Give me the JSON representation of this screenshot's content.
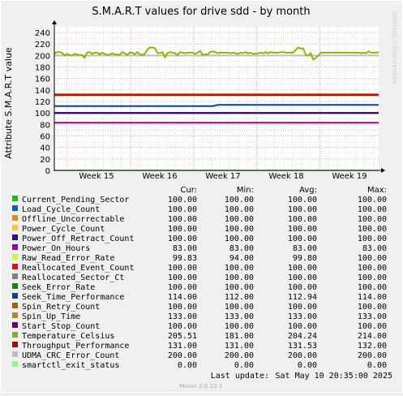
{
  "chart_data": {
    "type": "line",
    "title": "S.M.A.R.T values for drive sdd - by month",
    "ylabel": "Attribute S.M.A.R.T value",
    "xlabel": "",
    "side_label": "RRDTOOL / TOBI OETIKER",
    "footer": "Munin 2.0.33-1",
    "ylim": [
      0,
      250
    ],
    "yticks": [
      0,
      20,
      40,
      60,
      80,
      100,
      120,
      140,
      160,
      180,
      200,
      220,
      240
    ],
    "xticks": [
      "Week 15",
      "Week 16",
      "Week 17",
      "Week 18",
      "Week 19"
    ],
    "grid": true,
    "legend_headers": {
      "cur": "Cur:",
      "min": "Min:",
      "avg": "Avg:",
      "max": "Max:"
    },
    "last_update_label": "Last update:",
    "last_update_value": "Sat May 10 20:35:00 2025",
    "series": [
      {
        "name": "Current_Pending_Sector",
        "color": "#00cc00",
        "cur": "100.00",
        "min": "100.00",
        "avg": "100.00",
        "max": "100.00",
        "value": 100
      },
      {
        "name": "Load_Cycle_Count",
        "color": "#0066b3",
        "cur": "100.00",
        "min": "100.00",
        "avg": "100.00",
        "max": "100.00",
        "value": 100
      },
      {
        "name": "Offline_Uncorrectable",
        "color": "#ff8000",
        "cur": "100.00",
        "min": "100.00",
        "avg": "100.00",
        "max": "100.00",
        "value": 100
      },
      {
        "name": "Power_Cycle_Count",
        "color": "#ffcc00",
        "cur": "100.00",
        "min": "100.00",
        "avg": "100.00",
        "max": "100.00",
        "value": 100
      },
      {
        "name": "Power_Off_Retract_Count",
        "color": "#330099",
        "cur": "100.00",
        "min": "100.00",
        "avg": "100.00",
        "max": "100.00",
        "value": 100
      },
      {
        "name": "Power_On_Hours",
        "color": "#990099",
        "cur": "83.00",
        "min": "83.00",
        "avg": "83.00",
        "max": "83.00",
        "value": 83
      },
      {
        "name": "Raw_Read_Error_Rate",
        "color": "#ccff00",
        "cur": "99.83",
        "min": "94.00",
        "avg": "99.80",
        "max": "100.00",
        "value": 99.8
      },
      {
        "name": "Reallocated_Event_Count",
        "color": "#ff0000",
        "cur": "100.00",
        "min": "100.00",
        "avg": "100.00",
        "max": "100.00",
        "value": 100
      },
      {
        "name": "Reallocated_Sector_Ct",
        "color": "#808080",
        "cur": "100.00",
        "min": "100.00",
        "avg": "100.00",
        "max": "100.00",
        "value": 100
      },
      {
        "name": "Seek_Error_Rate",
        "color": "#008f00",
        "cur": "100.00",
        "min": "100.00",
        "avg": "100.00",
        "max": "100.00",
        "value": 100
      },
      {
        "name": "Seek_Time_Performance",
        "color": "#00487d",
        "cur": "114.00",
        "min": "112.00",
        "avg": "112.94",
        "max": "114.00",
        "value": 112
      },
      {
        "name": "Spin_Retry_Count",
        "color": "#b35a00",
        "cur": "100.00",
        "min": "100.00",
        "avg": "100.00",
        "max": "100.00",
        "value": 100
      },
      {
        "name": "Spin_Up_Time",
        "color": "#b38f00",
        "cur": "133.00",
        "min": "133.00",
        "avg": "133.00",
        "max": "133.00",
        "value": 133
      },
      {
        "name": "Start_Stop_Count",
        "color": "#6b006b",
        "cur": "100.00",
        "min": "100.00",
        "avg": "100.00",
        "max": "100.00",
        "value": 100
      },
      {
        "name": "Temperature_Celsius",
        "color": "#8fb300",
        "cur": "205.51",
        "min": "181.00",
        "avg": "204.24",
        "max": "214.00",
        "value": 204
      },
      {
        "name": "Throughput_Performance",
        "color": "#b30000",
        "cur": "131.00",
        "min": "131.00",
        "avg": "131.53",
        "max": "132.00",
        "value": 131
      },
      {
        "name": "UDMA_CRC_Error_Count",
        "color": "#bebebe",
        "cur": "200.00",
        "min": "200.00",
        "avg": "200.00",
        "max": "200.00",
        "value": 200
      },
      {
        "name": "smartctl_exit_status",
        "color": "#80ff80",
        "cur": "0.00",
        "min": "0.00",
        "avg": "0.00",
        "max": "0.00",
        "value": 0
      }
    ],
    "temperature_values": [
      203,
      206,
      206,
      205,
      200,
      203,
      201,
      200,
      203,
      202,
      201,
      201,
      196,
      205,
      206,
      203,
      205,
      205,
      202,
      205,
      203,
      201,
      202,
      204,
      202,
      202,
      201,
      206,
      204,
      201,
      205,
      205,
      202,
      206,
      202,
      201,
      203,
      210,
      214,
      214,
      213,
      205,
      204,
      206,
      197,
      204,
      206,
      205,
      204,
      201,
      206,
      205,
      204,
      205,
      205,
      205,
      203,
      205,
      208,
      201,
      202,
      202,
      206,
      207,
      206,
      204,
      205,
      205,
      205,
      205,
      204,
      205,
      204,
      203,
      205,
      204,
      206,
      204,
      205,
      203,
      203,
      204,
      205,
      204,
      206,
      204,
      206,
      205,
      205,
      205,
      206,
      206,
      205,
      205,
      205,
      205,
      210,
      214,
      212,
      212,
      201,
      200,
      204,
      193,
      196,
      200,
      205,
      205,
      205,
      205,
      205,
      205,
      205,
      205,
      205,
      205,
      205,
      205,
      205,
      205,
      205,
      205,
      204,
      205,
      204,
      207,
      205,
      205,
      205,
      206
    ],
    "seek_time_values": [
      112,
      112,
      112,
      112,
      112,
      112,
      112,
      112,
      112,
      112,
      112,
      112,
      112,
      112,
      112,
      112,
      112,
      112,
      112,
      112,
      112,
      112,
      112,
      112,
      112,
      112,
      112,
      112,
      112,
      112,
      112,
      112,
      112,
      112,
      112,
      112,
      112,
      112,
      112,
      112,
      112,
      112,
      112,
      112,
      112,
      112,
      112,
      112,
      112,
      112,
      112,
      112,
      112,
      112,
      112,
      112,
      112,
      112,
      112,
      112,
      112,
      112,
      112,
      112,
      113,
      114,
      114,
      114,
      114,
      114,
      114,
      114,
      114,
      114,
      114,
      114,
      114,
      114,
      114,
      114,
      114,
      114,
      114,
      114,
      114,
      114,
      114,
      114,
      114,
      114,
      114,
      114,
      114,
      114,
      114,
      114,
      114,
      114,
      114,
      114,
      114,
      114,
      114,
      114,
      114,
      114,
      114,
      114,
      114,
      114,
      114,
      114,
      114,
      114,
      114,
      114,
      114,
      114,
      114,
      114,
      114,
      114,
      114,
      114,
      114,
      114,
      114,
      114,
      114,
      114
    ]
  }
}
